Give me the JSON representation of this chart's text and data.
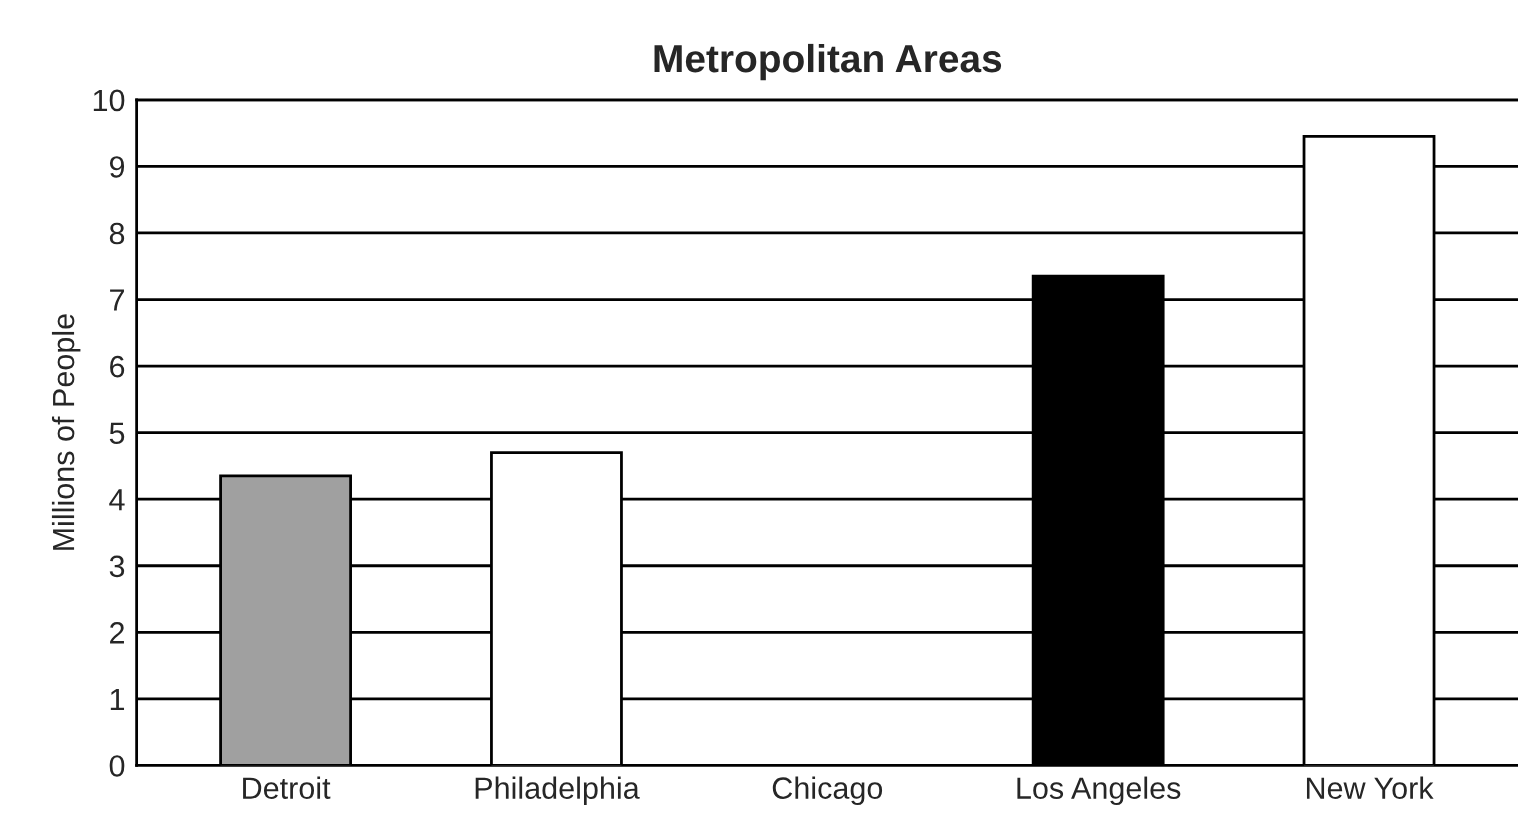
{
  "chart_data": {
    "type": "bar",
    "title": "Metropolitan Areas",
    "ylabel": "Millions of People",
    "categories": [
      "Detroit",
      "Philadelphia",
      "Chicago",
      "Los Angeles",
      "New York"
    ],
    "values": [
      4.35,
      4.7,
      null,
      7.35,
      9.45
    ],
    "colors": [
      "#a0a0a0",
      "#ffffff",
      "#ffffff",
      "#000000",
      "#ffffff"
    ],
    "ylim": [
      0,
      10
    ],
    "yticks": [
      0,
      1,
      2,
      3,
      4,
      5,
      6,
      7,
      8,
      9,
      10
    ],
    "grid": "y"
  }
}
